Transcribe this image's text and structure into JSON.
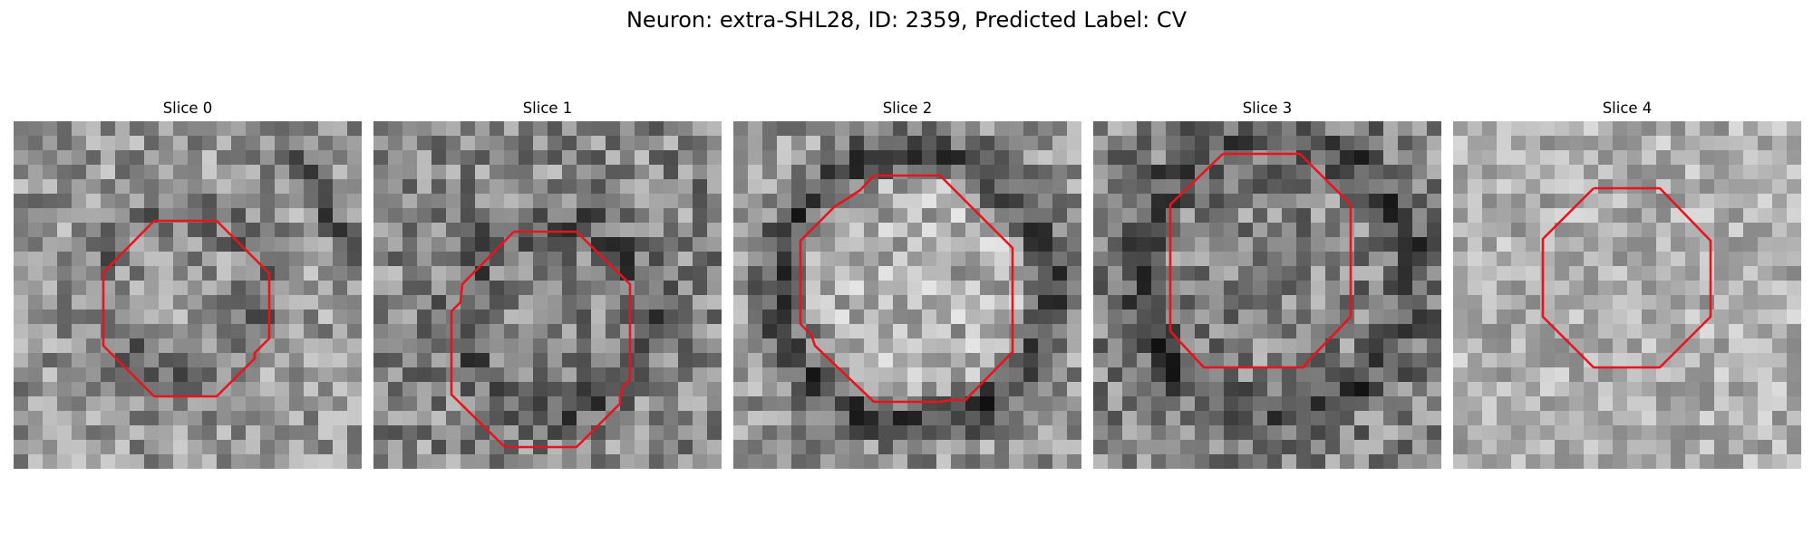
{
  "figure": {
    "title": "Neuron: extra-SHL28, ID: 2359, Predicted Label: CV"
  },
  "slices": [
    {
      "label": "Slice 0"
    },
    {
      "label": "Slice 1"
    },
    {
      "label": "Slice 2"
    },
    {
      "label": "Slice 3"
    },
    {
      "label": "Slice 4"
    }
  ],
  "colors": {
    "contour": "#e8141c",
    "background": "#ffffff"
  }
}
